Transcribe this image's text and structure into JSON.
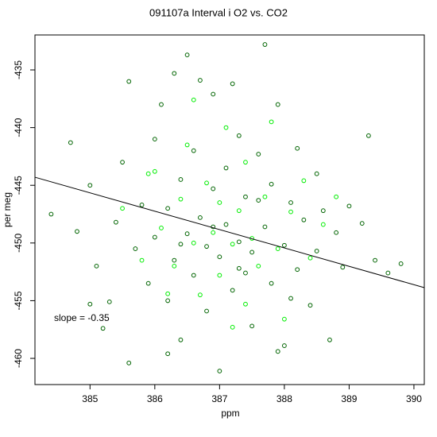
{
  "chart_data": {
    "type": "scatter",
    "title": "091107a   Interval i O2 vs. CO2",
    "xlabel": "ppm",
    "ylabel": "per meg",
    "annotation": "slope =  -0.35",
    "xlim": [
      384.15,
      390.16
    ],
    "ylim": [
      -462.27,
      -431.97
    ],
    "xticks": [
      385,
      386,
      387,
      388,
      389,
      390
    ],
    "yticks": [
      -435,
      -440,
      -445,
      -450,
      -455,
      -460
    ],
    "fit_line": {
      "color": "#000000",
      "x": [
        384.15,
        390.16
      ],
      "y": [
        -444.3,
        -453.87
      ]
    },
    "series": [
      {
        "color": "#006400",
        "x": [
          384.4,
          384.7,
          384.8,
          385.0,
          385.1,
          385.2,
          385.3,
          385.4,
          385.5,
          385.6,
          385.6,
          385.7,
          385.8,
          385.9,
          386.0,
          386.0,
          386.1,
          386.2,
          386.2,
          386.3,
          386.3,
          386.4,
          386.4,
          386.5,
          386.5,
          386.6,
          386.6,
          386.7,
          386.7,
          386.8,
          386.8,
          386.9,
          386.9,
          387.0,
          387.0,
          387.1,
          387.1,
          387.2,
          387.2,
          387.3,
          387.3,
          387.4,
          387.4,
          387.5,
          387.5,
          387.6,
          387.7,
          387.7,
          387.8,
          387.8,
          387.9,
          388.0,
          388.0,
          388.1,
          388.2,
          388.2,
          388.3,
          388.4,
          388.5,
          388.5,
          388.6,
          388.7,
          388.8,
          388.9,
          389.0,
          389.2,
          389.3,
          389.4,
          389.6,
          389.8,
          387.9,
          386.2,
          385.0,
          386.9,
          387.3,
          386.4,
          387.6,
          388.1
        ],
        "y": [
          -447.5,
          -441.3,
          -449.0,
          -445.0,
          -452.0,
          -457.4,
          -455.1,
          -448.2,
          -443.0,
          -436.0,
          -460.4,
          -450.5,
          -446.7,
          -453.5,
          -441.0,
          -449.5,
          -438.0,
          -455.0,
          -447.0,
          -435.3,
          -451.5,
          -444.5,
          -458.4,
          -433.7,
          -449.2,
          -452.8,
          -442.0,
          -435.9,
          -447.8,
          -450.3,
          -455.9,
          -437.1,
          -445.3,
          -461.1,
          -451.2,
          -448.4,
          -443.5,
          -454.1,
          -436.2,
          -449.9,
          -440.7,
          -452.6,
          -446.0,
          -457.2,
          -450.8,
          -442.3,
          -448.6,
          -432.8,
          -453.5,
          -444.9,
          -438.0,
          -450.2,
          -458.9,
          -446.5,
          -441.8,
          -452.3,
          -448.0,
          -455.4,
          -444.0,
          -450.7,
          -447.2,
          -458.4,
          -449.1,
          -452.1,
          -446.8,
          -448.3,
          -440.7,
          -451.5,
          -452.6,
          -451.8,
          -459.4,
          -459.6,
          -455.3,
          -448.6,
          -452.2,
          -450.1,
          -446.3,
          -454.8
        ]
      },
      {
        "color": "#00ee00",
        "x": [
          385.5,
          385.8,
          386.0,
          386.1,
          386.3,
          386.4,
          386.5,
          386.6,
          386.7,
          386.8,
          386.9,
          387.0,
          387.0,
          387.1,
          387.2,
          387.3,
          387.4,
          387.4,
          387.5,
          387.6,
          387.7,
          387.8,
          387.9,
          388.0,
          388.1,
          388.3,
          388.4,
          388.6,
          388.8,
          386.2,
          386.6,
          387.2,
          385.9
        ],
        "y": [
          -447.0,
          -451.5,
          -443.8,
          -448.7,
          -452.0,
          -446.2,
          -441.5,
          -450.0,
          -454.5,
          -444.8,
          -449.1,
          -446.5,
          -452.8,
          -440.0,
          -450.1,
          -447.2,
          -455.3,
          -443.0,
          -449.6,
          -452.0,
          -446.0,
          -439.5,
          -450.5,
          -456.6,
          -447.3,
          -444.6,
          -451.3,
          -448.4,
          -446.0,
          -454.4,
          -437.6,
          -457.3,
          -444.0
        ]
      }
    ]
  }
}
